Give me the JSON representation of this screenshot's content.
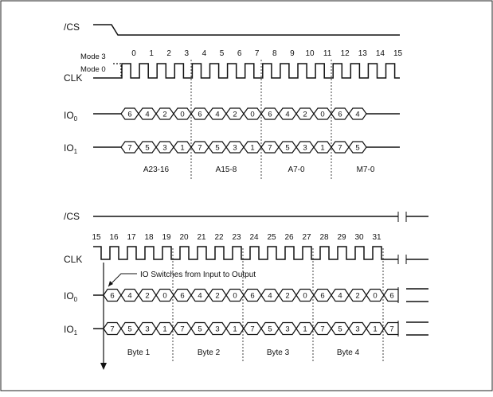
{
  "top": {
    "cs_label": "/CS",
    "clk_label": "CLK",
    "io0_label": "IO",
    "io0_sub": "0",
    "io1_label": "IO",
    "io1_sub": "1",
    "mode3": "Mode 3",
    "mode0": "Mode 0",
    "clock_numbers": [
      "0",
      "1",
      "2",
      "3",
      "4",
      "5",
      "6",
      "7",
      "8",
      "9",
      "10",
      "11",
      "12",
      "13",
      "14",
      "15"
    ],
    "io0_values": [
      "6",
      "4",
      "2",
      "0",
      "6",
      "4",
      "2",
      "0",
      "6",
      "4",
      "2",
      "0",
      "6",
      "4"
    ],
    "io1_values": [
      "7",
      "5",
      "3",
      "1",
      "7",
      "5",
      "3",
      "1",
      "7",
      "5",
      "3",
      "1",
      "7",
      "5"
    ],
    "groups": [
      "A23-16",
      "A15-8",
      "A7-0",
      "M7-0"
    ]
  },
  "bottom": {
    "cs_label": "/CS",
    "clk_label": "CLK",
    "io0_label": "IO",
    "io0_sub": "0",
    "io1_label": "IO",
    "io1_sub": "1",
    "clock_numbers": [
      "15",
      "16",
      "17",
      "18",
      "19",
      "20",
      "21",
      "22",
      "23",
      "24",
      "25",
      "26",
      "27",
      "28",
      "29",
      "30",
      "31"
    ],
    "io0_values": [
      "6",
      "4",
      "2",
      "0",
      "6",
      "4",
      "2",
      "0",
      "6",
      "4",
      "2",
      "0",
      "6",
      "4",
      "2",
      "0",
      "6"
    ],
    "io1_values": [
      "7",
      "5",
      "3",
      "1",
      "7",
      "5",
      "3",
      "1",
      "7",
      "5",
      "3",
      "1",
      "7",
      "5",
      "3",
      "1",
      "7"
    ],
    "annotation": "IO Switches from Input to Output",
    "groups": [
      "Byte 1",
      "Byte 2",
      "Byte 3",
      "Byte 4"
    ]
  }
}
